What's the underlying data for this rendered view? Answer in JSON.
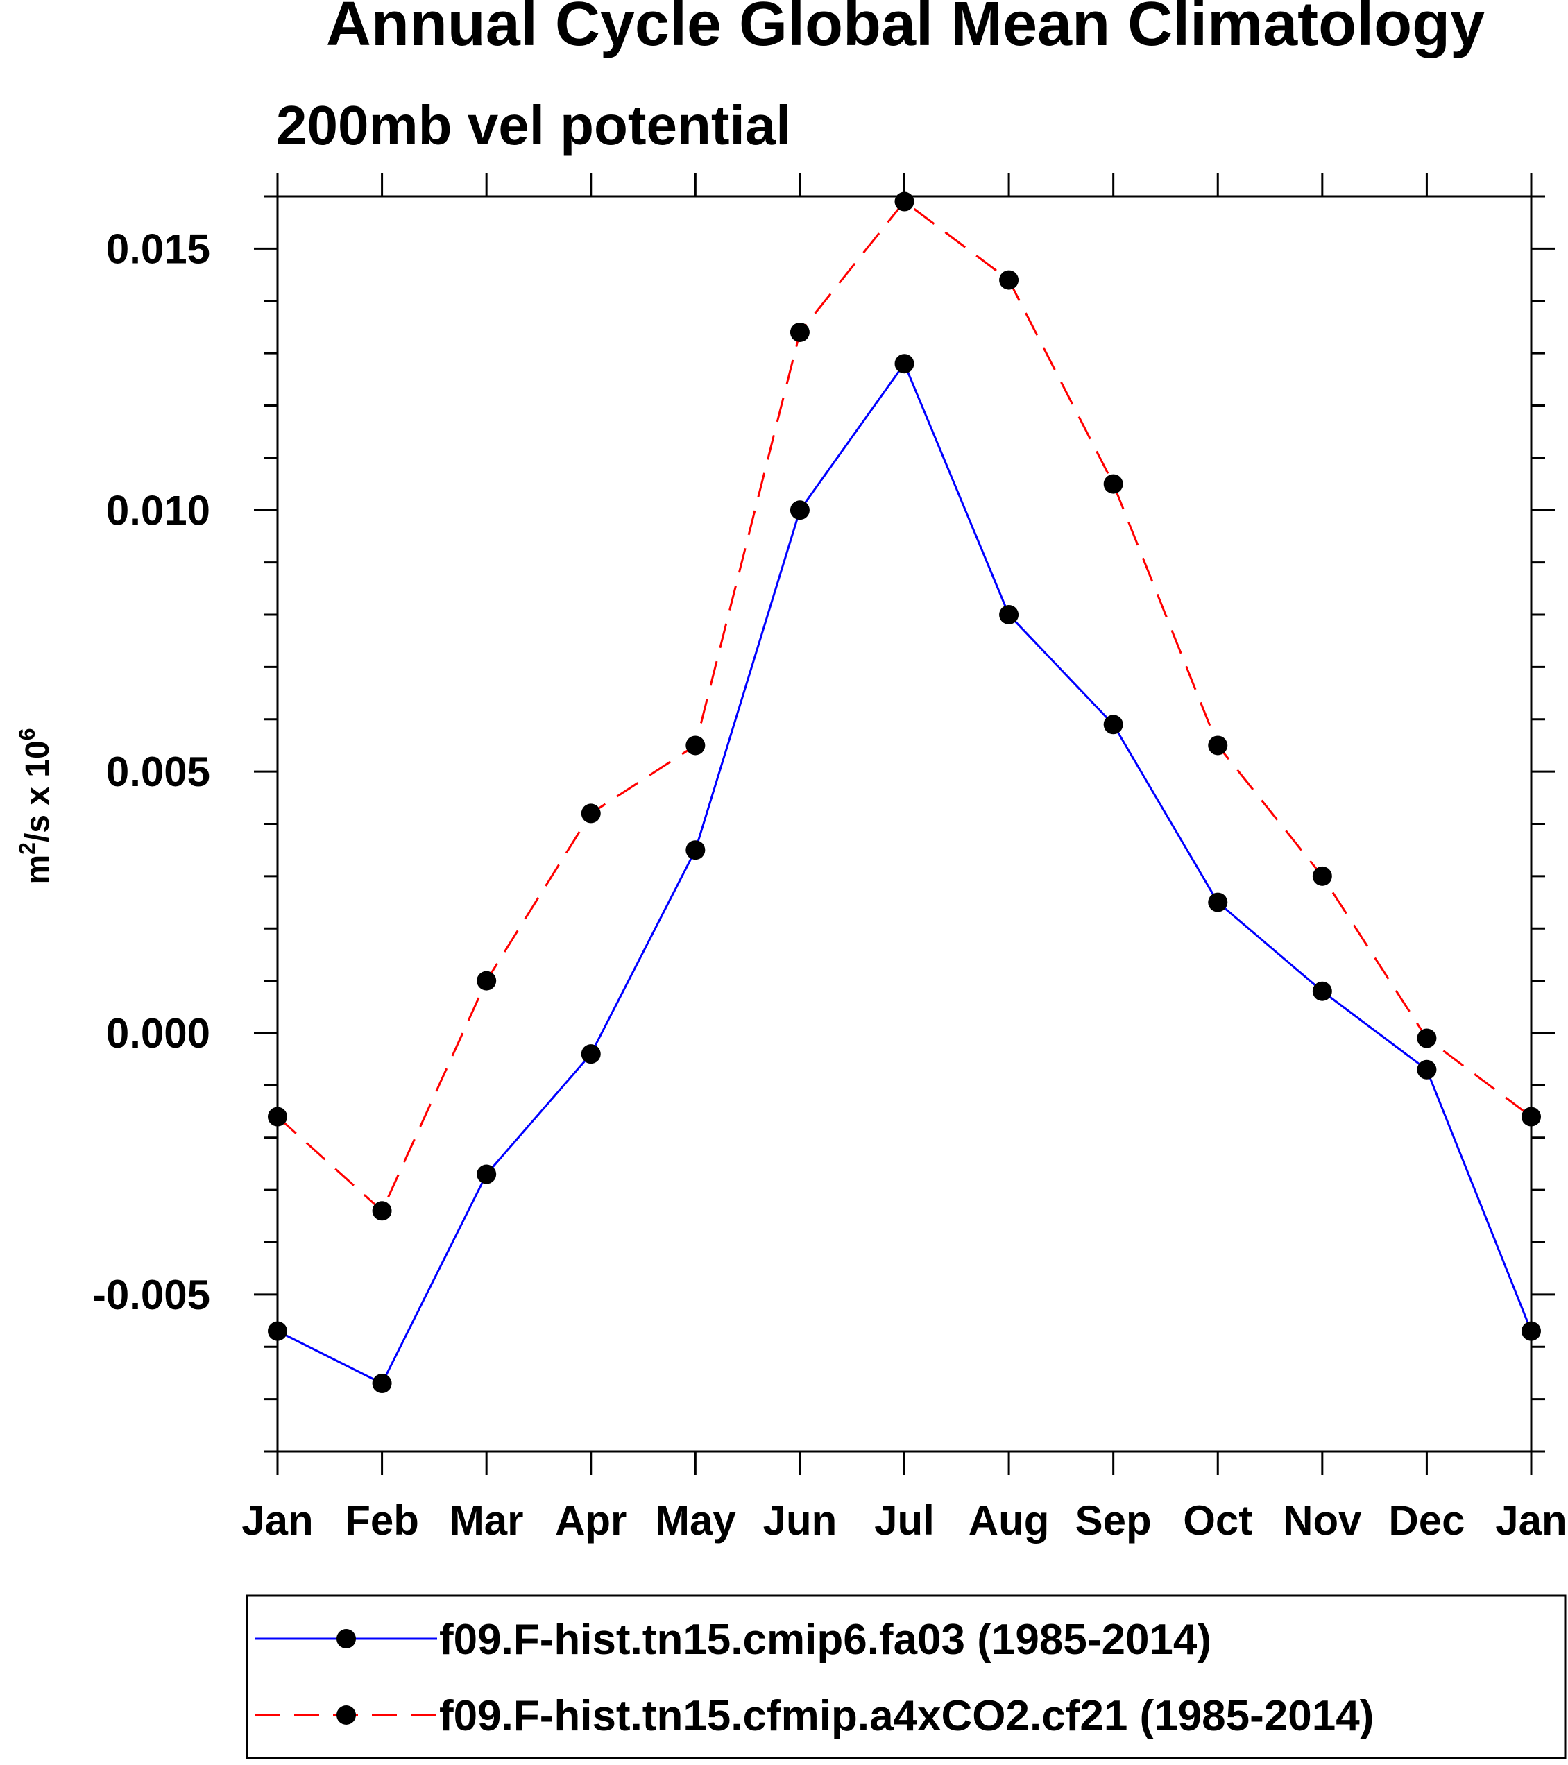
{
  "chart_data": {
    "type": "line",
    "title": "Annual Cycle Global Mean Climatology",
    "subtitle": "200mb vel potential",
    "ylabel": "m²/s x 10⁶",
    "ylabel_parts": {
      "base": "m",
      "sup1": "2",
      "mid": "/s x 10",
      "sup2": "6"
    },
    "xlabel": "",
    "categories": [
      "Jan",
      "Feb",
      "Mar",
      "Apr",
      "May",
      "Jun",
      "Jul",
      "Aug",
      "Sep",
      "Oct",
      "Nov",
      "Dec",
      "Jan"
    ],
    "ylim": [
      -0.008,
      0.016
    ],
    "yticks": [
      -0.005,
      0.0,
      0.005,
      0.01,
      0.015
    ],
    "ytick_labels": [
      "-0.005",
      "0.000",
      "0.005",
      "0.010",
      "0.015"
    ],
    "y_minor_step": 0.001,
    "series": [
      {
        "name": "f09.F-hist.tn15.cmip6.fa03 (1985-2014)",
        "color": "#0000ff",
        "dash": "solid",
        "values": [
          -0.0057,
          -0.0067,
          -0.0027,
          -0.0004,
          0.0035,
          0.01,
          0.0128,
          0.008,
          0.0059,
          0.0025,
          0.0008,
          -0.0007,
          -0.0057
        ]
      },
      {
        "name": "f09.F-hist.tn15.cfmip.a4xCO2.cf21 (1985-2014)",
        "color": "#ff0000",
        "dash": "dashed",
        "values": [
          -0.0016,
          -0.0034,
          0.001,
          0.0042,
          0.0055,
          0.0134,
          0.0159,
          0.0144,
          0.0105,
          0.0055,
          0.003,
          -0.0001,
          -0.0016
        ]
      }
    ],
    "legend_position": "bottom",
    "grid": false
  }
}
